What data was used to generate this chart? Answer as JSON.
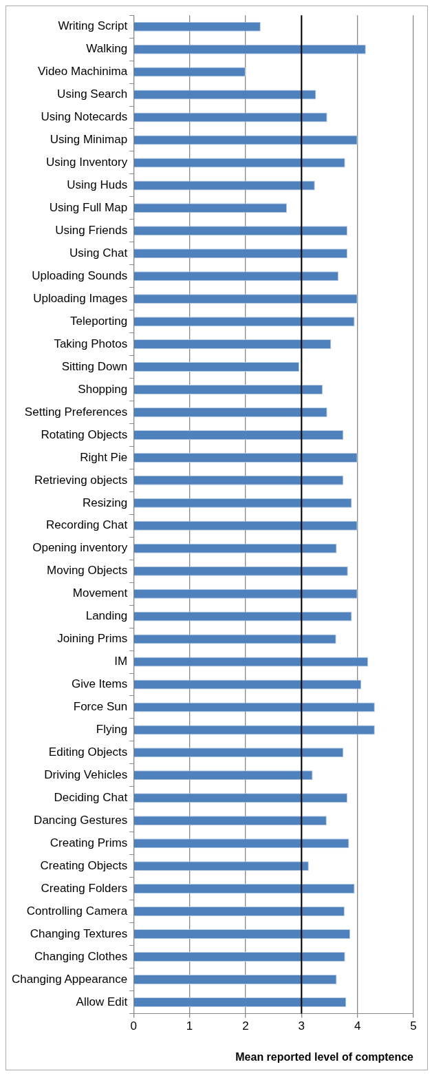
{
  "chart_data": {
    "type": "bar",
    "orientation": "horizontal",
    "xlabel": "Mean reported level of comptence",
    "categories": [
      "Writing Script",
      "Walking",
      "Video Machinima",
      "Using Search",
      "Using Notecards",
      "Using Minimap",
      "Using Inventory",
      "Using Huds",
      "Using Full Map",
      "Using Friends",
      "Using Chat",
      "Uploading Sounds",
      "Uploading Images",
      "Teleporting",
      "Taking Photos",
      "Sitting Down",
      "Shopping",
      "Setting Preferences",
      "Rotating Objects",
      "Right Pie",
      "Retrieving objects",
      "Resizing",
      "Recording Chat",
      "Opening inventory",
      "Moving Objects",
      "Movement",
      "Landing",
      "Joining Prims",
      "IM",
      "Give Items",
      "Force Sun",
      "Flying",
      "Editing Objects",
      "Driving Vehicles",
      "Deciding Chat",
      "Dancing Gestures",
      "Creating Prims",
      "Creating Objects",
      "Creating Folders",
      "Controlling Camera",
      "Changing Textures",
      "Changing Clothes",
      "Changing Appearance",
      "Allow Edit"
    ],
    "values": [
      2.27,
      4.15,
      2.0,
      3.26,
      3.46,
      4.0,
      3.78,
      3.24,
      2.74,
      3.82,
      3.82,
      3.66,
      4.0,
      3.95,
      3.53,
      2.96,
      3.38,
      3.46,
      3.75,
      4.0,
      3.75,
      3.9,
      4.0,
      3.63,
      3.83,
      4.0,
      3.9,
      3.62,
      4.19,
      4.07,
      4.31,
      4.31,
      3.75,
      3.2,
      3.82,
      3.45,
      3.85,
      3.13,
      3.95,
      3.77,
      3.87,
      3.78,
      3.63,
      3.8
    ],
    "color": "#4f81bd",
    "xlim": [
      0,
      5
    ],
    "xticks": [
      0,
      1,
      2,
      3,
      4,
      5
    ],
    "grid": "x",
    "ref_lines": [
      {
        "axis": "x",
        "value": 3,
        "color": "#000000"
      }
    ]
  }
}
